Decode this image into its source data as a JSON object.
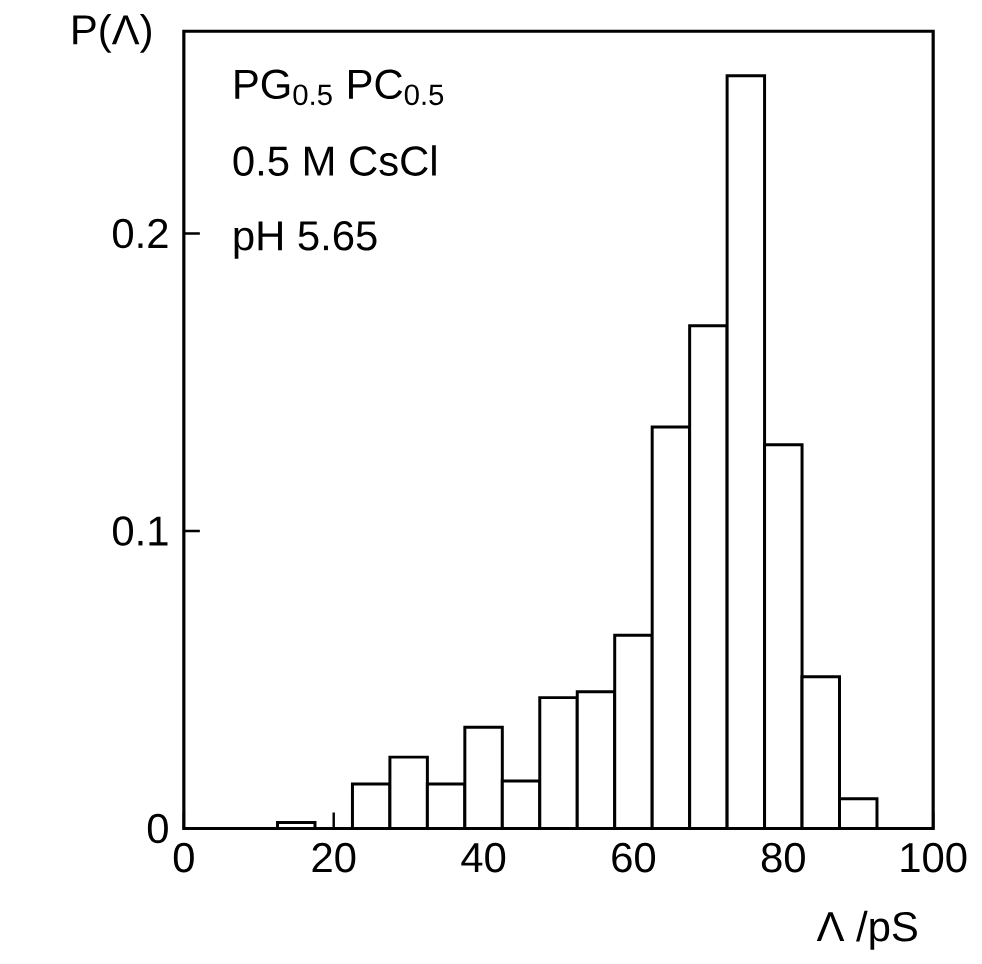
{
  "chart_data": {
    "type": "histogram",
    "xlabel": "Λ /pS",
    "ylabel": "P(Λ)",
    "annotations": [
      "PG$_{0.5}$ PC$_{0.5}$",
      "0.5 M CsCl",
      "pH 5.65"
    ],
    "bins": [
      12.5,
      17.5,
      22.5,
      27.5,
      32.5,
      37.5,
      42.5,
      47.5,
      52.5,
      57.5,
      62.5,
      67.5,
      72.5,
      77.5,
      82.5,
      87.5,
      92.5
    ],
    "values": [
      0.002,
      0,
      0.015,
      0.024,
      0.015,
      0.034,
      0.016,
      0.044,
      0.046,
      0.065,
      0.135,
      0.169,
      0.253,
      0.129,
      0.051,
      0.01
    ],
    "color": "#000000",
    "xlim": [
      0,
      100
    ],
    "ylim": [
      0,
      0.268
    ],
    "xticks": [
      0,
      20,
      40,
      60,
      80,
      100
    ],
    "yticks": [
      0,
      0.1,
      0.2
    ],
    "grid": false
  }
}
